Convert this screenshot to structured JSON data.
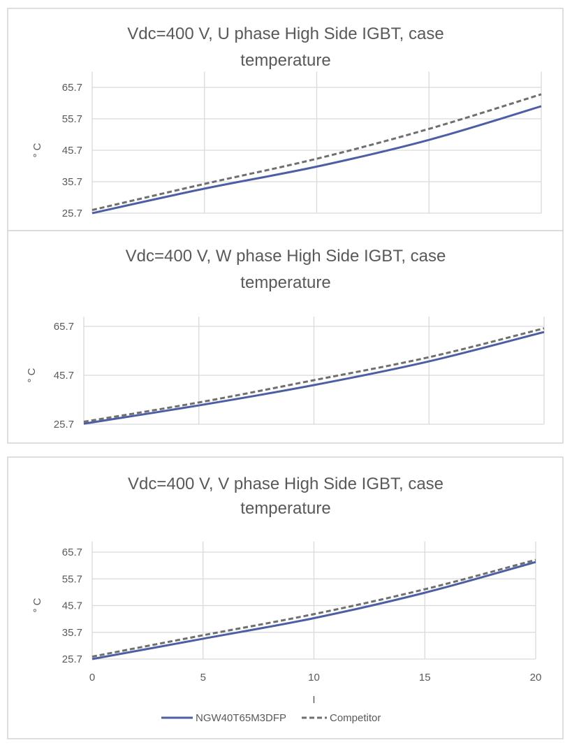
{
  "legend": {
    "position": "bottom",
    "series": [
      "NGW40T65M3DFP",
      "Competitor"
    ]
  },
  "colors": {
    "NGW40T65M3DFP": "#4e5ea5",
    "Competitor": "#6f6f6f"
  },
  "chart_data": [
    {
      "type": "line",
      "title_lines": [
        "Vdc=400 V, U phase High Side IGBT, case",
        "temperature"
      ],
      "ylabel": "° C",
      "xlabel": "",
      "x": [
        0,
        5,
        10,
        15,
        20
      ],
      "xlim": [
        0,
        20
      ],
      "ylim": [
        25.7,
        70.7
      ],
      "yticks": [
        "65.7",
        "55.7",
        "45.7",
        "35.7",
        "25.7"
      ],
      "xticks": [],
      "grid": true,
      "series": [
        {
          "name": "NGW40T65M3DFP",
          "values": [
            25.7,
            33.5,
            40.5,
            49.0,
            59.7
          ]
        },
        {
          "name": "Competitor",
          "values": [
            26.7,
            35.0,
            43.0,
            52.5,
            63.5
          ]
        }
      ]
    },
    {
      "type": "line",
      "title_lines": [
        "Vdc=400 V, W phase High Side IGBT, case",
        "temperature"
      ],
      "ylabel": "° C",
      "xlabel": "",
      "x": [
        0,
        5,
        10,
        15,
        20
      ],
      "xlim": [
        0,
        20
      ],
      "ylim": [
        25.7,
        69.7
      ],
      "yticks": [
        "65.7",
        "45.7",
        "25.7"
      ],
      "xticks": [],
      "grid": true,
      "series": [
        {
          "name": "NGW40T65M3DFP",
          "values": [
            25.9,
            33.4,
            41.7,
            51.4,
            63.4
          ]
        },
        {
          "name": "Competitor",
          "values": [
            26.7,
            34.6,
            43.7,
            53.1,
            64.9
          ]
        }
      ]
    },
    {
      "type": "line",
      "title_lines": [
        "Vdc=400 V, V phase High Side IGBT, case",
        "temperature"
      ],
      "ylabel": "° C",
      "xlabel": "I",
      "x": [
        0,
        5,
        10,
        15,
        20
      ],
      "xlim": [
        0,
        20
      ],
      "ylim": [
        25.7,
        69.7
      ],
      "yticks": [
        "65.7",
        "55.7",
        "45.7",
        "35.7",
        "25.7"
      ],
      "xticks": [
        "0",
        "5",
        "10",
        "15",
        "20"
      ],
      "grid": true,
      "series": [
        {
          "name": "NGW40T65M3DFP",
          "values": [
            25.7,
            33.3,
            41.0,
            50.5,
            62.0
          ]
        },
        {
          "name": "Competitor",
          "values": [
            26.6,
            34.6,
            42.5,
            51.8,
            62.8
          ]
        }
      ]
    }
  ]
}
